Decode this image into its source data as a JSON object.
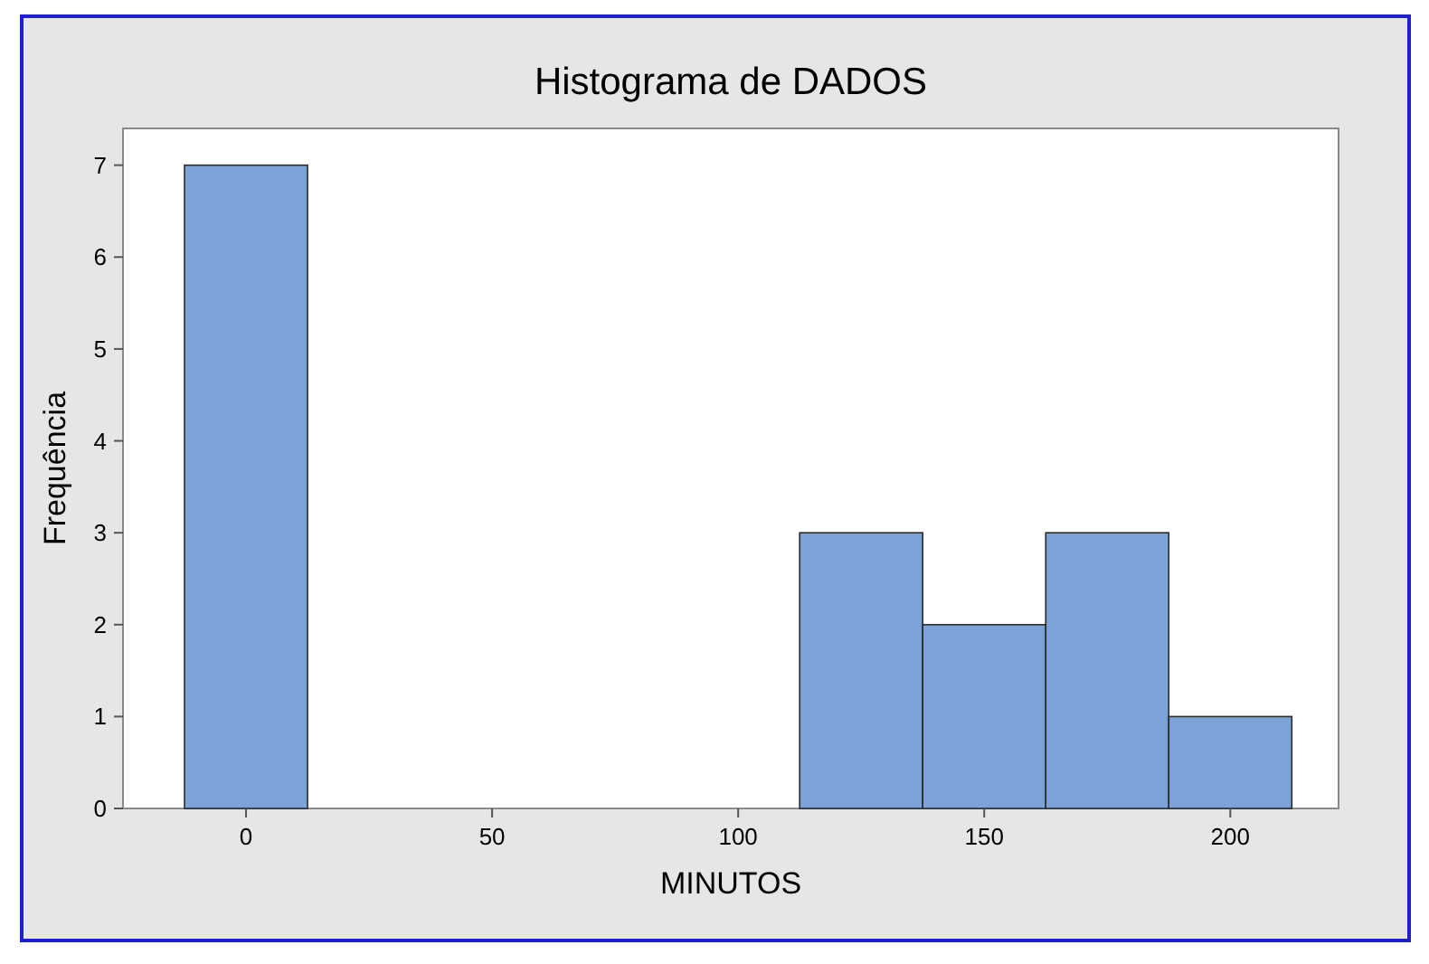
{
  "chart_data": {
    "type": "histogram",
    "title": "Histograma de DADOS",
    "xlabel": "MINUTOS",
    "ylabel": "Frequência",
    "bins": [
      -12.5,
      12.5,
      37.5,
      62.5,
      87.5,
      112.5,
      137.5,
      162.5,
      187.5,
      212.5
    ],
    "values": [
      7,
      0,
      0,
      0,
      0,
      3,
      2,
      3,
      1
    ],
    "color": "#7ba3d8",
    "xlim": [
      -25,
      222
    ],
    "xticks": [
      0,
      50,
      100,
      150,
      200
    ],
    "ylim": [
      0,
      7.4
    ],
    "yticks": [
      0,
      1,
      2,
      3,
      4,
      5,
      6,
      7
    ],
    "grid": false
  }
}
